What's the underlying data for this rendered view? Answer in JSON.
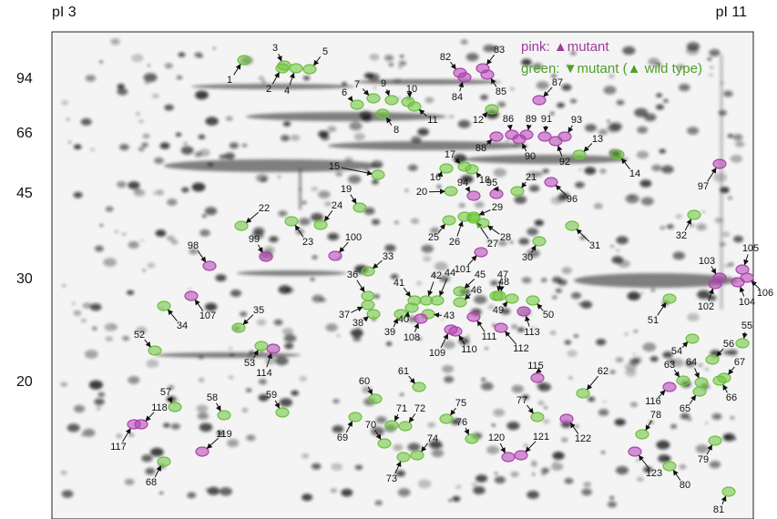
{
  "header": {
    "left": "pI 3",
    "right": "pI 11"
  },
  "axis": {
    "labels": [
      "94",
      "66",
      "45",
      "30",
      "20"
    ]
  },
  "legend": {
    "pink": "pink: ▲mutant",
    "green": "green: ▼mutant (▲ wild type)"
  },
  "spots": [
    "1",
    "2",
    "3",
    "4",
    "5",
    "6",
    "7",
    "8",
    "9",
    "10",
    "11",
    "12",
    "13",
    "14",
    "15",
    "16",
    "17",
    "18",
    "19",
    "20",
    "21",
    "22",
    "23",
    "24",
    "25",
    "26",
    "27",
    "28",
    "29",
    "30",
    "31",
    "32",
    "33",
    "34",
    "35",
    "36",
    "37",
    "38",
    "39",
    "40",
    "41",
    "42",
    "43",
    "44",
    "45",
    "46",
    "47",
    "48",
    "49",
    "50",
    "51",
    "52",
    "53",
    "54",
    "55",
    "56",
    "57",
    "58",
    "59",
    "60",
    "61",
    "62",
    "63",
    "64",
    "65",
    "66",
    "67",
    "68",
    "69",
    "70",
    "71",
    "72",
    "73",
    "74",
    "75",
    "76",
    "77",
    "78",
    "79",
    "80",
    "81",
    "82",
    "83",
    "84",
    "85",
    "86",
    "87",
    "88",
    "89",
    "90",
    "91",
    "92",
    "93",
    "94",
    "95",
    "96",
    "97",
    "98",
    "99",
    "100",
    "101",
    "102",
    "103",
    "104",
    "105",
    "106",
    "107",
    "108",
    "109",
    "110",
    "111",
    "112",
    "113",
    "114",
    "115",
    "116",
    "117",
    "118",
    "119",
    "120",
    "121",
    "122",
    "123"
  ]
}
